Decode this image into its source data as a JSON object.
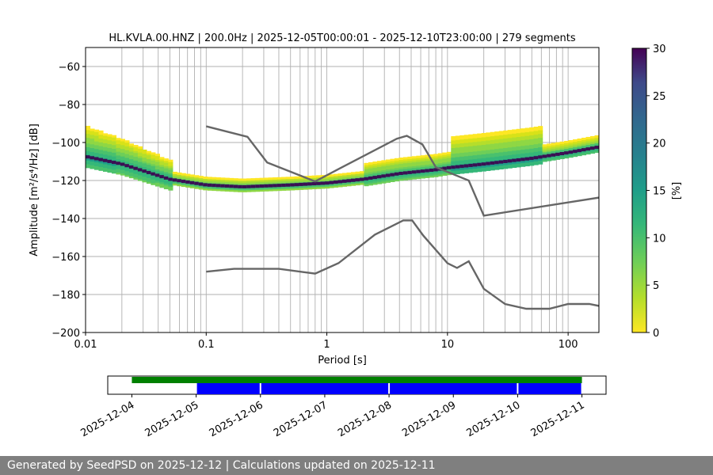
{
  "chart_data": {
    "type": "heatmap",
    "title": "HL.KVLA.00.HNZ | 200.0Hz | 2025-12-05T00:00:01 - 2025-12-10T23:00:00 | 279 segments",
    "xlabel": "Period [s]",
    "ylabel": "Amplitude [m²/s⁴/Hz] [dB]",
    "x_scale": "log",
    "xlim": [
      0.01,
      180
    ],
    "ylim": [
      -200,
      -50
    ],
    "grid": true,
    "x_ticks": [
      "0.01",
      "0.1",
      "1",
      "10",
      "100"
    ],
    "y_ticks": [
      "−60",
      "−80",
      "−100",
      "−120",
      "−140",
      "−160",
      "−180",
      "−200"
    ],
    "colorbar": {
      "label": "[%]",
      "range": [
        0,
        30
      ],
      "ticks": [
        "0",
        "5",
        "10",
        "15",
        "20",
        "25",
        "30"
      ],
      "colormap": "viridis_r"
    },
    "series": [
      {
        "name": "",
        "color": "#666666",
        "x": [
          0.1,
          0.22,
          0.32,
          0.8,
          1.25,
          3.8,
          4.6,
          6.2,
          8,
          15,
          20,
          180
        ],
        "y": [
          -91.5,
          -97,
          -110.5,
          -120.5,
          -114,
          -98,
          -96.5,
          -101,
          -113,
          -120,
          -138.5,
          -129
        ]
      },
      {
        "name": "",
        "color": "#666666",
        "x": [
          0.1,
          0.17,
          0.4,
          0.8,
          1.25,
          2.5,
          4.3,
          5.1,
          6.3,
          10,
          12,
          15,
          20,
          30,
          45,
          70,
          100,
          150,
          180
        ],
        "y": [
          -168,
          -166.5,
          -166.5,
          -169,
          -163.5,
          -148.5,
          -141,
          -141,
          -149,
          -163.5,
          -166,
          -162.5,
          -177,
          -185,
          -187.5,
          -187.5,
          -185,
          -185,
          -186
        ]
      }
    ],
    "density": {
      "mode_x": [
        0.01,
        0.02,
        0.05,
        0.1,
        0.2,
        0.5,
        1,
        2,
        4,
        8,
        10,
        20,
        50,
        100,
        180
      ],
      "mode_y": [
        -108,
        -112,
        -120,
        -123,
        -124,
        -123,
        -122,
        -120,
        -117,
        -115,
        -114,
        -112,
        -109,
        -106,
        -103
      ]
    },
    "timeline": {
      "ticks": [
        "2025-12-04",
        "2025-12-05",
        "2025-12-06",
        "2025-12-07",
        "2025-12-08",
        "2025-12-09",
        "2025-12-10",
        "2025-12-11"
      ],
      "available_bar": {
        "start": "2025-12-04",
        "end": "2025-12-11",
        "color": "#008000"
      },
      "used_segments": [
        {
          "start": "2025-12-05",
          "end": "2025-12-06"
        },
        {
          "start": "2025-12-06",
          "end": "2025-12-08"
        },
        {
          "start": "2025-12-08",
          "end": "2025-12-10"
        },
        {
          "start": "2025-12-10",
          "end": "2025-12-11"
        }
      ],
      "used_color": "#0000ff"
    }
  },
  "footer": "Generated by SeedPSD on 2025-12-12 | Calculations updated on 2025-12-11"
}
